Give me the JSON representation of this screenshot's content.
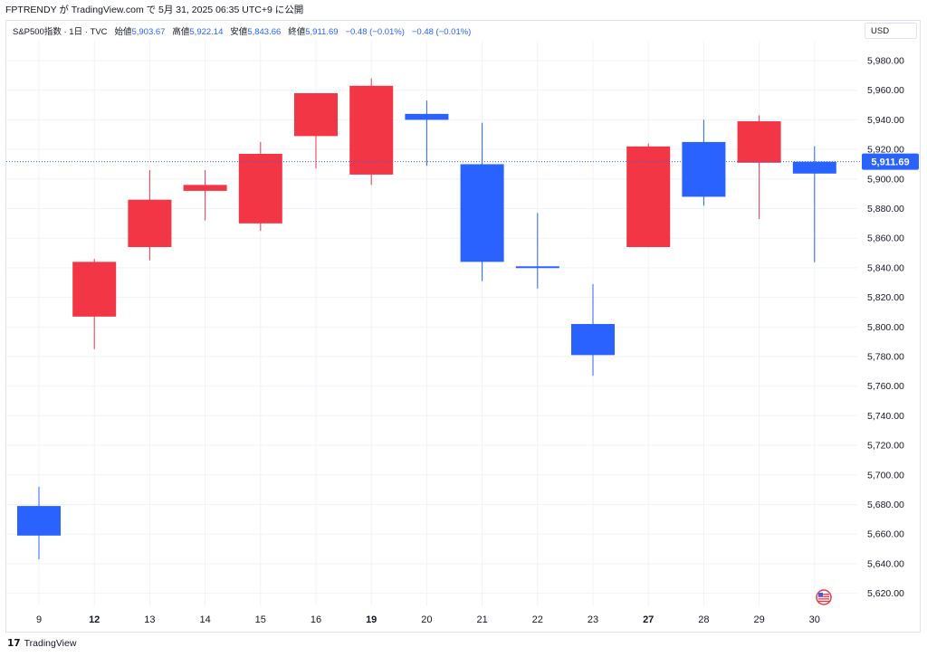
{
  "header": {
    "text": "FPTRENDY が TradingView.com で 5月 31, 2025 06:35 UTC+9 に公開"
  },
  "legend": {
    "symbol": "S&P500指数 · 1日 · TVC",
    "open_label": "始値",
    "open_value": "5,903.67",
    "high_label": "高値",
    "high_value": "5,922.14",
    "low_label": "安値",
    "low_value": "5,843.66",
    "close_label": "終値",
    "close_value": "5,911.69",
    "change": "−0.48 (−0.01%)",
    "change2": "−0.48 (−0.01%)"
  },
  "currency": "USD",
  "footer": {
    "logo": "17",
    "brand": "TradingView"
  },
  "colors": {
    "up": "#2962ff",
    "down": "#f23645",
    "grid": "#f0f3fa",
    "axis_text": "#131722",
    "last_price_bg": "#2962ff"
  },
  "chart_data": {
    "type": "candlestick",
    "categories": [
      "9",
      "12",
      "13",
      "14",
      "15",
      "16",
      "19",
      "20",
      "21",
      "22",
      "23",
      "27",
      "28",
      "29",
      "30"
    ],
    "bold_categories": [
      "12",
      "19",
      "27"
    ],
    "candles": [
      {
        "o": 5659,
        "h": 5692,
        "l": 5643,
        "c": 5679
      },
      {
        "o": 5844,
        "h": 5846,
        "l": 5785,
        "c": 5807
      },
      {
        "o": 5886,
        "h": 5906,
        "l": 5845,
        "c": 5854
      },
      {
        "o": 5896,
        "h": 5906,
        "l": 5872,
        "c": 5892
      },
      {
        "o": 5917,
        "h": 5925,
        "l": 5865,
        "c": 5870
      },
      {
        "o": 5958,
        "h": 5958,
        "l": 5907,
        "c": 5929
      },
      {
        "o": 5963,
        "h": 5968,
        "l": 5896,
        "c": 5903
      },
      {
        "o": 5940,
        "h": 5953,
        "l": 5909,
        "c": 5944
      },
      {
        "o": 5844,
        "h": 5938,
        "l": 5831,
        "c": 5910
      },
      {
        "o": 5840,
        "h": 5877,
        "l": 5826,
        "c": 5841
      },
      {
        "o": 5781,
        "h": 5829,
        "l": 5767,
        "c": 5802
      },
      {
        "o": 5922,
        "h": 5924,
        "l": 5854,
        "c": 5854
      },
      {
        "o": 5888,
        "h": 5940,
        "l": 5882,
        "c": 5925
      },
      {
        "o": 5939,
        "h": 5943,
        "l": 5873,
        "c": 5911
      },
      {
        "o": 5903.67,
        "h": 5922.14,
        "l": 5843.66,
        "c": 5911.69
      }
    ],
    "y_ticks": [
      "5,620.00",
      "5,640.00",
      "5,660.00",
      "5,680.00",
      "5,700.00",
      "5,720.00",
      "5,740.00",
      "5,760.00",
      "5,780.00",
      "5,800.00",
      "5,820.00",
      "5,840.00",
      "5,860.00",
      "5,880.00",
      "5,900.00",
      "5,920.00",
      "5,940.00",
      "5,960.00",
      "5,980.00"
    ],
    "y_tick_values": [
      5620,
      5640,
      5660,
      5680,
      5700,
      5720,
      5740,
      5760,
      5780,
      5800,
      5820,
      5840,
      5860,
      5880,
      5900,
      5920,
      5940,
      5960,
      5980
    ],
    "last_price": 5911.69,
    "last_price_label": "5,911.69",
    "grid": true
  }
}
